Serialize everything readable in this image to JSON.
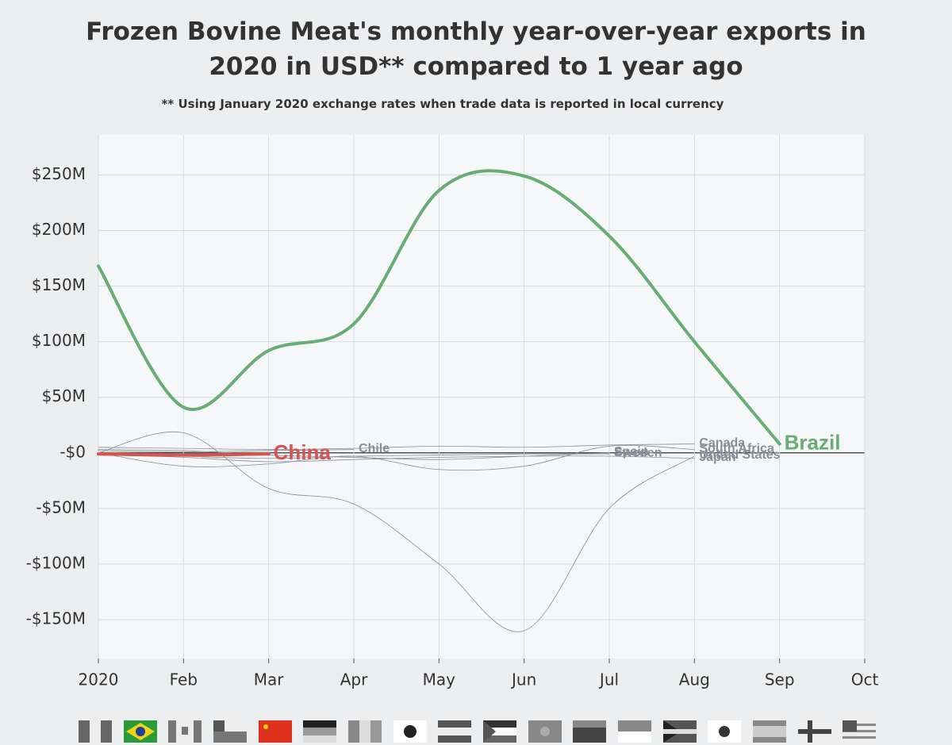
{
  "chart_data": {
    "type": "line",
    "title": "Frozen Bovine Meat's monthly year-over-year exports in 2020 in USD** compared to 1 year ago",
    "subtitle": "** Using January 2020 exchange rates when trade data is reported in local currency",
    "categories": [
      "2020",
      "Feb",
      "Mar",
      "Apr",
      "May",
      "Jun",
      "Jul",
      "Aug",
      "Sep",
      "Oct"
    ],
    "ylim": [
      -185,
      286
    ],
    "yticks": [
      {
        "value": -150,
        "label": "-$150M"
      },
      {
        "value": -100,
        "label": "-$100M"
      },
      {
        "value": -50,
        "label": "-$50M"
      },
      {
        "value": 0,
        "label": "-$0"
      },
      {
        "value": 50,
        "label": "$50M"
      },
      {
        "value": 100,
        "label": "$100M"
      },
      {
        "value": 150,
        "label": "$150M"
      },
      {
        "value": 200,
        "label": "$200M"
      },
      {
        "value": 250,
        "label": "$250M"
      }
    ],
    "grid": true,
    "series": [
      {
        "name": "United States",
        "color": "#8a8f96",
        "values": [
          0,
          18,
          -32,
          -46,
          -100,
          -160,
          -50,
          -3,
          null,
          null
        ]
      },
      {
        "name": "South Africa",
        "color": "#8a8f96",
        "values": [
          0,
          -12,
          -10,
          -3,
          -15,
          -12,
          6,
          3,
          null,
          null
        ]
      },
      {
        "name": "Japan",
        "color": "#8a8f96",
        "values": [
          -2,
          -4,
          -8,
          -6,
          -4,
          -3,
          -3,
          -5,
          null,
          null
        ]
      },
      {
        "name": "Canada",
        "color": "#8a8f96",
        "values": [
          5,
          4,
          3,
          4,
          6,
          5,
          7,
          8,
          null,
          null
        ]
      },
      {
        "name": "Spain",
        "color": "#8a8f96",
        "values": [
          3,
          2,
          -2,
          -4,
          -6,
          -3,
          0,
          null,
          null,
          null
        ]
      },
      {
        "name": "Sweden",
        "color": "#8a8f96",
        "values": [
          0,
          -3,
          -5,
          -3,
          -2,
          -1,
          -1,
          null,
          null,
          null
        ]
      },
      {
        "name": "Chile",
        "color": "#8a8f96",
        "values": [
          2,
          1,
          2,
          3,
          null,
          null,
          null,
          null,
          null,
          null
        ]
      },
      {
        "name": "China",
        "color": "#d9534f",
        "values": [
          -1,
          -2,
          -1,
          null,
          null,
          null,
          null,
          null,
          null,
          null
        ]
      },
      {
        "name": "Brazil",
        "color": "#68ad73",
        "values": [
          168,
          41,
          92,
          116,
          236,
          249,
          195,
          100,
          8,
          null
        ]
      }
    ]
  }
}
